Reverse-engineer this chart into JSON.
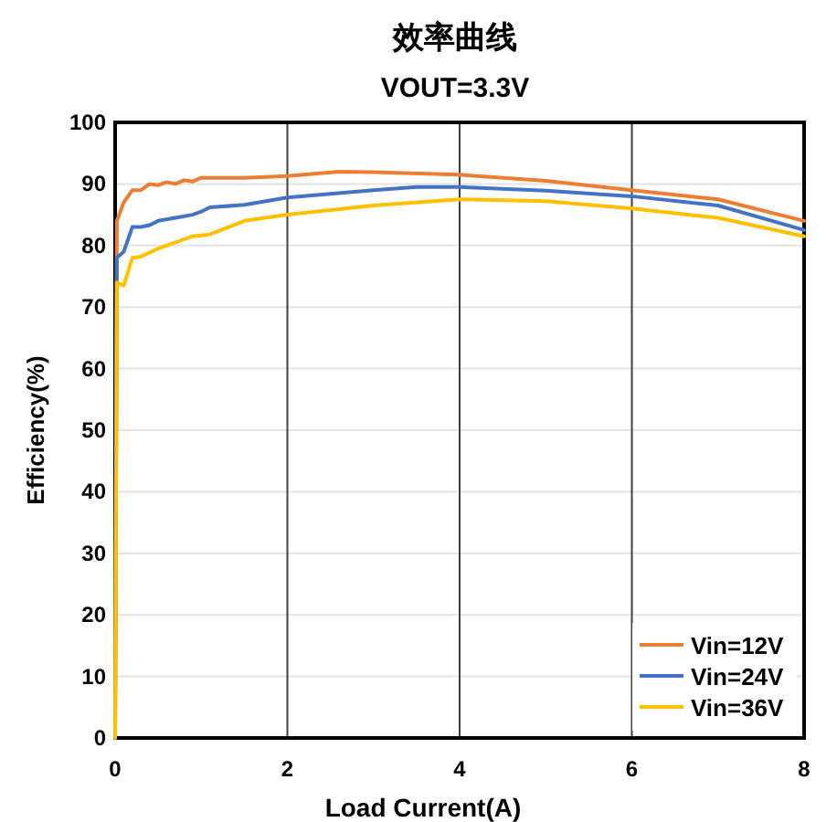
{
  "chart_data": {
    "type": "line",
    "title": "效率曲线",
    "subtitle": "VOUT=3.3V",
    "xlabel": "Load Current(A)",
    "ylabel": "Efficiency(%)",
    "xlim": [
      0,
      8
    ],
    "xticks": [
      0,
      2,
      4,
      6,
      8
    ],
    "ylim": [
      0,
      100
    ],
    "yticks": [
      0,
      10,
      20,
      30,
      40,
      50,
      60,
      70,
      80,
      90,
      100
    ],
    "grid": true,
    "legend": "bottom right",
    "line_style": "solid",
    "marker": "none",
    "series": [
      {
        "name": "Vin=12V",
        "color": "#ed7d31",
        "x": [
          0,
          0.02,
          0.1,
          0.2,
          0.3,
          0.4,
          0.5,
          0.6,
          0.7,
          0.8,
          0.9,
          1.0,
          1.5,
          2,
          2.6,
          3,
          4,
          5,
          6,
          7,
          8
        ],
        "values": [
          0,
          84,
          87,
          89,
          89,
          90,
          89.8,
          90.3,
          90,
          90.6,
          90.4,
          91,
          91,
          91.3,
          92,
          91.9,
          91.5,
          90.5,
          89,
          87.5,
          84
        ]
      },
      {
        "name": "Vin=24V",
        "color": "#4472c4",
        "x": [
          0,
          0.02,
          0.1,
          0.2,
          0.3,
          0.4,
          0.5,
          0.7,
          0.9,
          1.0,
          1.1,
          1.5,
          2,
          3,
          3.5,
          4,
          5,
          6,
          7,
          8
        ],
        "values": [
          0,
          78,
          79,
          83,
          83,
          83.3,
          84,
          84.5,
          85,
          85.5,
          86.2,
          86.6,
          87.8,
          89,
          89.5,
          89.5,
          88.9,
          88,
          86.5,
          82.5
        ]
      },
      {
        "name": "Vin=36V",
        "color": "#ffc000",
        "x": [
          0,
          0.02,
          0.1,
          0.2,
          0.3,
          0.5,
          0.7,
          0.9,
          1.1,
          1.5,
          2,
          3,
          4,
          5,
          6,
          7,
          8
        ],
        "values": [
          0,
          74,
          73.5,
          78,
          78.2,
          79.5,
          80.5,
          81.5,
          81.8,
          84,
          85,
          86.5,
          87.5,
          87.2,
          86,
          84.5,
          81.5
        ]
      }
    ]
  }
}
